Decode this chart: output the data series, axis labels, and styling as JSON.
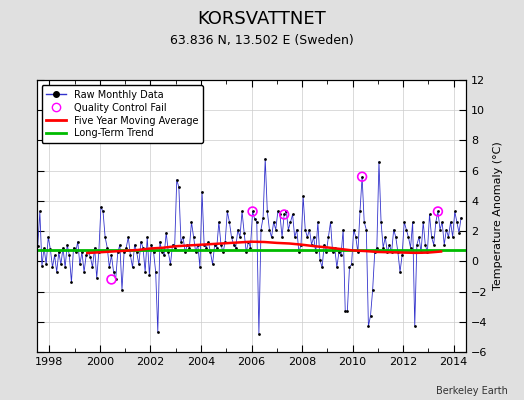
{
  "title": "KORSVATTNET",
  "subtitle": "63.836 N, 13.502 E (Sweden)",
  "ylabel": "Temperature Anomaly (°C)",
  "credit": "Berkeley Earth",
  "ylim": [
    -6,
    12
  ],
  "yticks": [
    -6,
    -4,
    -2,
    0,
    2,
    4,
    6,
    8,
    10,
    12
  ],
  "xlim": [
    1997.5,
    2014.5
  ],
  "xticks": [
    1998,
    2000,
    2002,
    2004,
    2006,
    2008,
    2010,
    2012,
    2014
  ],
  "bg_color": "#e0e0e0",
  "plot_bg_color": "#ffffff",
  "raw_line_color": "#3333cc",
  "raw_marker_color": "#000000",
  "moving_avg_color": "#ff0000",
  "trend_color": "#00bb00",
  "qc_fail_color": "#ff00ff",
  "long_term_trend_value": 0.75,
  "raw_data": [
    [
      1997.542,
      1.0
    ],
    [
      1997.625,
      3.3
    ],
    [
      1997.708,
      -0.3
    ],
    [
      1997.792,
      0.9
    ],
    [
      1997.875,
      -0.2
    ],
    [
      1997.958,
      1.6
    ],
    [
      1998.042,
      0.8
    ],
    [
      1998.125,
      -0.4
    ],
    [
      1998.208,
      0.4
    ],
    [
      1998.292,
      -0.7
    ],
    [
      1998.375,
      0.6
    ],
    [
      1998.458,
      -0.2
    ],
    [
      1998.542,
      0.9
    ],
    [
      1998.625,
      -0.4
    ],
    [
      1998.708,
      1.1
    ],
    [
      1998.792,
      0.4
    ],
    [
      1998.875,
      -1.4
    ],
    [
      1998.958,
      0.9
    ],
    [
      1999.042,
      0.6
    ],
    [
      1999.125,
      1.3
    ],
    [
      1999.208,
      -0.2
    ],
    [
      1999.292,
      0.6
    ],
    [
      1999.375,
      -0.7
    ],
    [
      1999.458,
      0.4
    ],
    [
      1999.542,
      0.6
    ],
    [
      1999.625,
      0.3
    ],
    [
      1999.708,
      -0.4
    ],
    [
      1999.792,
      0.9
    ],
    [
      1999.875,
      -1.1
    ],
    [
      1999.958,
      0.6
    ],
    [
      2000.042,
      3.6
    ],
    [
      2000.125,
      3.3
    ],
    [
      2000.208,
      1.6
    ],
    [
      2000.292,
      0.9
    ],
    [
      2000.375,
      -0.4
    ],
    [
      2000.458,
      0.4
    ],
    [
      2000.542,
      -0.7
    ],
    [
      2000.625,
      -1.2
    ],
    [
      2000.708,
      0.6
    ],
    [
      2000.792,
      1.1
    ],
    [
      2000.875,
      -1.9
    ],
    [
      2000.958,
      0.6
    ],
    [
      2001.042,
      0.9
    ],
    [
      2001.125,
      1.6
    ],
    [
      2001.208,
      0.4
    ],
    [
      2001.292,
      -0.4
    ],
    [
      2001.375,
      1.1
    ],
    [
      2001.458,
      0.6
    ],
    [
      2001.542,
      -0.2
    ],
    [
      2001.625,
      1.3
    ],
    [
      2001.708,
      0.9
    ],
    [
      2001.792,
      -0.7
    ],
    [
      2001.875,
      1.6
    ],
    [
      2001.958,
      -0.9
    ],
    [
      2002.042,
      1.1
    ],
    [
      2002.125,
      0.6
    ],
    [
      2002.208,
      -0.7
    ],
    [
      2002.292,
      -4.7
    ],
    [
      2002.375,
      1.3
    ],
    [
      2002.458,
      0.6
    ],
    [
      2002.542,
      0.4
    ],
    [
      2002.625,
      1.9
    ],
    [
      2002.708,
      0.6
    ],
    [
      2002.792,
      -0.2
    ],
    [
      2002.875,
      1.1
    ],
    [
      2002.958,
      0.9
    ],
    [
      2003.042,
      5.4
    ],
    [
      2003.125,
      4.9
    ],
    [
      2003.208,
      1.3
    ],
    [
      2003.292,
      1.6
    ],
    [
      2003.375,
      0.6
    ],
    [
      2003.458,
      1.1
    ],
    [
      2003.542,
      0.9
    ],
    [
      2003.625,
      2.6
    ],
    [
      2003.708,
      1.6
    ],
    [
      2003.792,
      0.6
    ],
    [
      2003.875,
      1.1
    ],
    [
      2003.958,
      -0.4
    ],
    [
      2004.042,
      4.6
    ],
    [
      2004.125,
      1.1
    ],
    [
      2004.208,
      0.9
    ],
    [
      2004.292,
      1.3
    ],
    [
      2004.375,
      0.6
    ],
    [
      2004.458,
      -0.2
    ],
    [
      2004.542,
      1.1
    ],
    [
      2004.625,
      0.9
    ],
    [
      2004.708,
      2.6
    ],
    [
      2004.792,
      1.1
    ],
    [
      2004.875,
      0.6
    ],
    [
      2004.958,
      1.3
    ],
    [
      2005.042,
      3.3
    ],
    [
      2005.125,
      2.6
    ],
    [
      2005.208,
      1.6
    ],
    [
      2005.292,
      1.1
    ],
    [
      2005.375,
      0.9
    ],
    [
      2005.458,
      2.1
    ],
    [
      2005.542,
      1.6
    ],
    [
      2005.625,
      3.3
    ],
    [
      2005.708,
      1.9
    ],
    [
      2005.792,
      0.6
    ],
    [
      2005.875,
      1.3
    ],
    [
      2005.958,
      0.9
    ],
    [
      2006.042,
      3.3
    ],
    [
      2006.125,
      2.8
    ],
    [
      2006.208,
      2.6
    ],
    [
      2006.292,
      -4.8
    ],
    [
      2006.375,
      2.1
    ],
    [
      2006.458,
      2.9
    ],
    [
      2006.542,
      6.8
    ],
    [
      2006.625,
      3.3
    ],
    [
      2006.708,
      2.1
    ],
    [
      2006.792,
      1.6
    ],
    [
      2006.875,
      2.6
    ],
    [
      2006.958,
      2.1
    ],
    [
      2007.042,
      3.3
    ],
    [
      2007.125,
      3.1
    ],
    [
      2007.208,
      1.6
    ],
    [
      2007.292,
      3.1
    ],
    [
      2007.375,
      3.3
    ],
    [
      2007.458,
      2.1
    ],
    [
      2007.542,
      2.6
    ],
    [
      2007.625,
      3.1
    ],
    [
      2007.708,
      1.6
    ],
    [
      2007.792,
      2.1
    ],
    [
      2007.875,
      0.6
    ],
    [
      2007.958,
      1.1
    ],
    [
      2008.042,
      4.3
    ],
    [
      2008.125,
      2.1
    ],
    [
      2008.208,
      1.6
    ],
    [
      2008.292,
      2.1
    ],
    [
      2008.375,
      1.1
    ],
    [
      2008.458,
      1.6
    ],
    [
      2008.542,
      0.6
    ],
    [
      2008.625,
      2.6
    ],
    [
      2008.708,
      0.1
    ],
    [
      2008.792,
      -0.4
    ],
    [
      2008.875,
      1.1
    ],
    [
      2008.958,
      0.6
    ],
    [
      2009.042,
      1.6
    ],
    [
      2009.125,
      2.6
    ],
    [
      2009.208,
      0.6
    ],
    [
      2009.292,
      0.9
    ],
    [
      2009.375,
      -0.4
    ],
    [
      2009.458,
      0.6
    ],
    [
      2009.542,
      0.4
    ],
    [
      2009.625,
      2.1
    ],
    [
      2009.708,
      -3.3
    ],
    [
      2009.792,
      -3.3
    ],
    [
      2009.875,
      -0.4
    ],
    [
      2009.958,
      -0.2
    ],
    [
      2010.042,
      2.1
    ],
    [
      2010.125,
      1.6
    ],
    [
      2010.208,
      0.6
    ],
    [
      2010.292,
      3.3
    ],
    [
      2010.375,
      5.6
    ],
    [
      2010.458,
      2.6
    ],
    [
      2010.542,
      2.1
    ],
    [
      2010.625,
      -4.3
    ],
    [
      2010.708,
      -3.6
    ],
    [
      2010.792,
      -1.9
    ],
    [
      2010.875,
      0.6
    ],
    [
      2010.958,
      0.9
    ],
    [
      2011.042,
      6.6
    ],
    [
      2011.125,
      2.6
    ],
    [
      2011.208,
      0.9
    ],
    [
      2011.292,
      1.6
    ],
    [
      2011.375,
      0.6
    ],
    [
      2011.458,
      1.1
    ],
    [
      2011.542,
      0.6
    ],
    [
      2011.625,
      2.1
    ],
    [
      2011.708,
      1.6
    ],
    [
      2011.792,
      0.6
    ],
    [
      2011.875,
      -0.7
    ],
    [
      2011.958,
      0.4
    ],
    [
      2012.042,
      2.6
    ],
    [
      2012.125,
      2.1
    ],
    [
      2012.208,
      1.6
    ],
    [
      2012.292,
      0.9
    ],
    [
      2012.375,
      2.6
    ],
    [
      2012.458,
      -4.3
    ],
    [
      2012.542,
      1.1
    ],
    [
      2012.625,
      1.6
    ],
    [
      2012.708,
      0.6
    ],
    [
      2012.792,
      2.6
    ],
    [
      2012.875,
      1.1
    ],
    [
      2012.958,
      0.6
    ],
    [
      2013.042,
      3.1
    ],
    [
      2013.125,
      1.6
    ],
    [
      2013.208,
      1.1
    ],
    [
      2013.292,
      2.6
    ],
    [
      2013.375,
      3.3
    ],
    [
      2013.458,
      2.1
    ],
    [
      2013.542,
      2.6
    ],
    [
      2013.625,
      1.1
    ],
    [
      2013.708,
      2.1
    ],
    [
      2013.792,
      1.6
    ],
    [
      2013.875,
      2.6
    ],
    [
      2013.958,
      1.6
    ],
    [
      2014.042,
      3.3
    ],
    [
      2014.125,
      2.6
    ],
    [
      2014.208,
      1.9
    ],
    [
      2014.292,
      2.9
    ]
  ],
  "qc_fail_points": [
    [
      2000.458,
      -1.2
    ],
    [
      2006.042,
      3.3
    ],
    [
      2007.292,
      3.1
    ],
    [
      2010.375,
      5.6
    ],
    [
      2013.375,
      3.3
    ]
  ],
  "moving_avg": [
    [
      1999.5,
      0.55
    ],
    [
      2000.0,
      0.6
    ],
    [
      2000.5,
      0.65
    ],
    [
      2001.0,
      0.7
    ],
    [
      2001.5,
      0.75
    ],
    [
      2002.0,
      0.85
    ],
    [
      2002.5,
      0.9
    ],
    [
      2003.0,
      1.0
    ],
    [
      2003.5,
      1.05
    ],
    [
      2004.0,
      1.1
    ],
    [
      2004.5,
      1.15
    ],
    [
      2005.0,
      1.2
    ],
    [
      2005.5,
      1.25
    ],
    [
      2006.0,
      1.3
    ],
    [
      2006.5,
      1.28
    ],
    [
      2007.0,
      1.22
    ],
    [
      2007.5,
      1.18
    ],
    [
      2008.0,
      1.1
    ],
    [
      2008.5,
      1.0
    ],
    [
      2009.0,
      0.92
    ],
    [
      2009.5,
      0.82
    ],
    [
      2010.0,
      0.72
    ],
    [
      2010.5,
      0.68
    ],
    [
      2011.0,
      0.62
    ],
    [
      2011.5,
      0.6
    ],
    [
      2012.0,
      0.58
    ],
    [
      2012.5,
      0.56
    ],
    [
      2013.0,
      0.58
    ],
    [
      2013.5,
      0.65
    ]
  ],
  "title_fontsize": 13,
  "subtitle_fontsize": 9,
  "tick_fontsize": 8,
  "ylabel_fontsize": 8
}
